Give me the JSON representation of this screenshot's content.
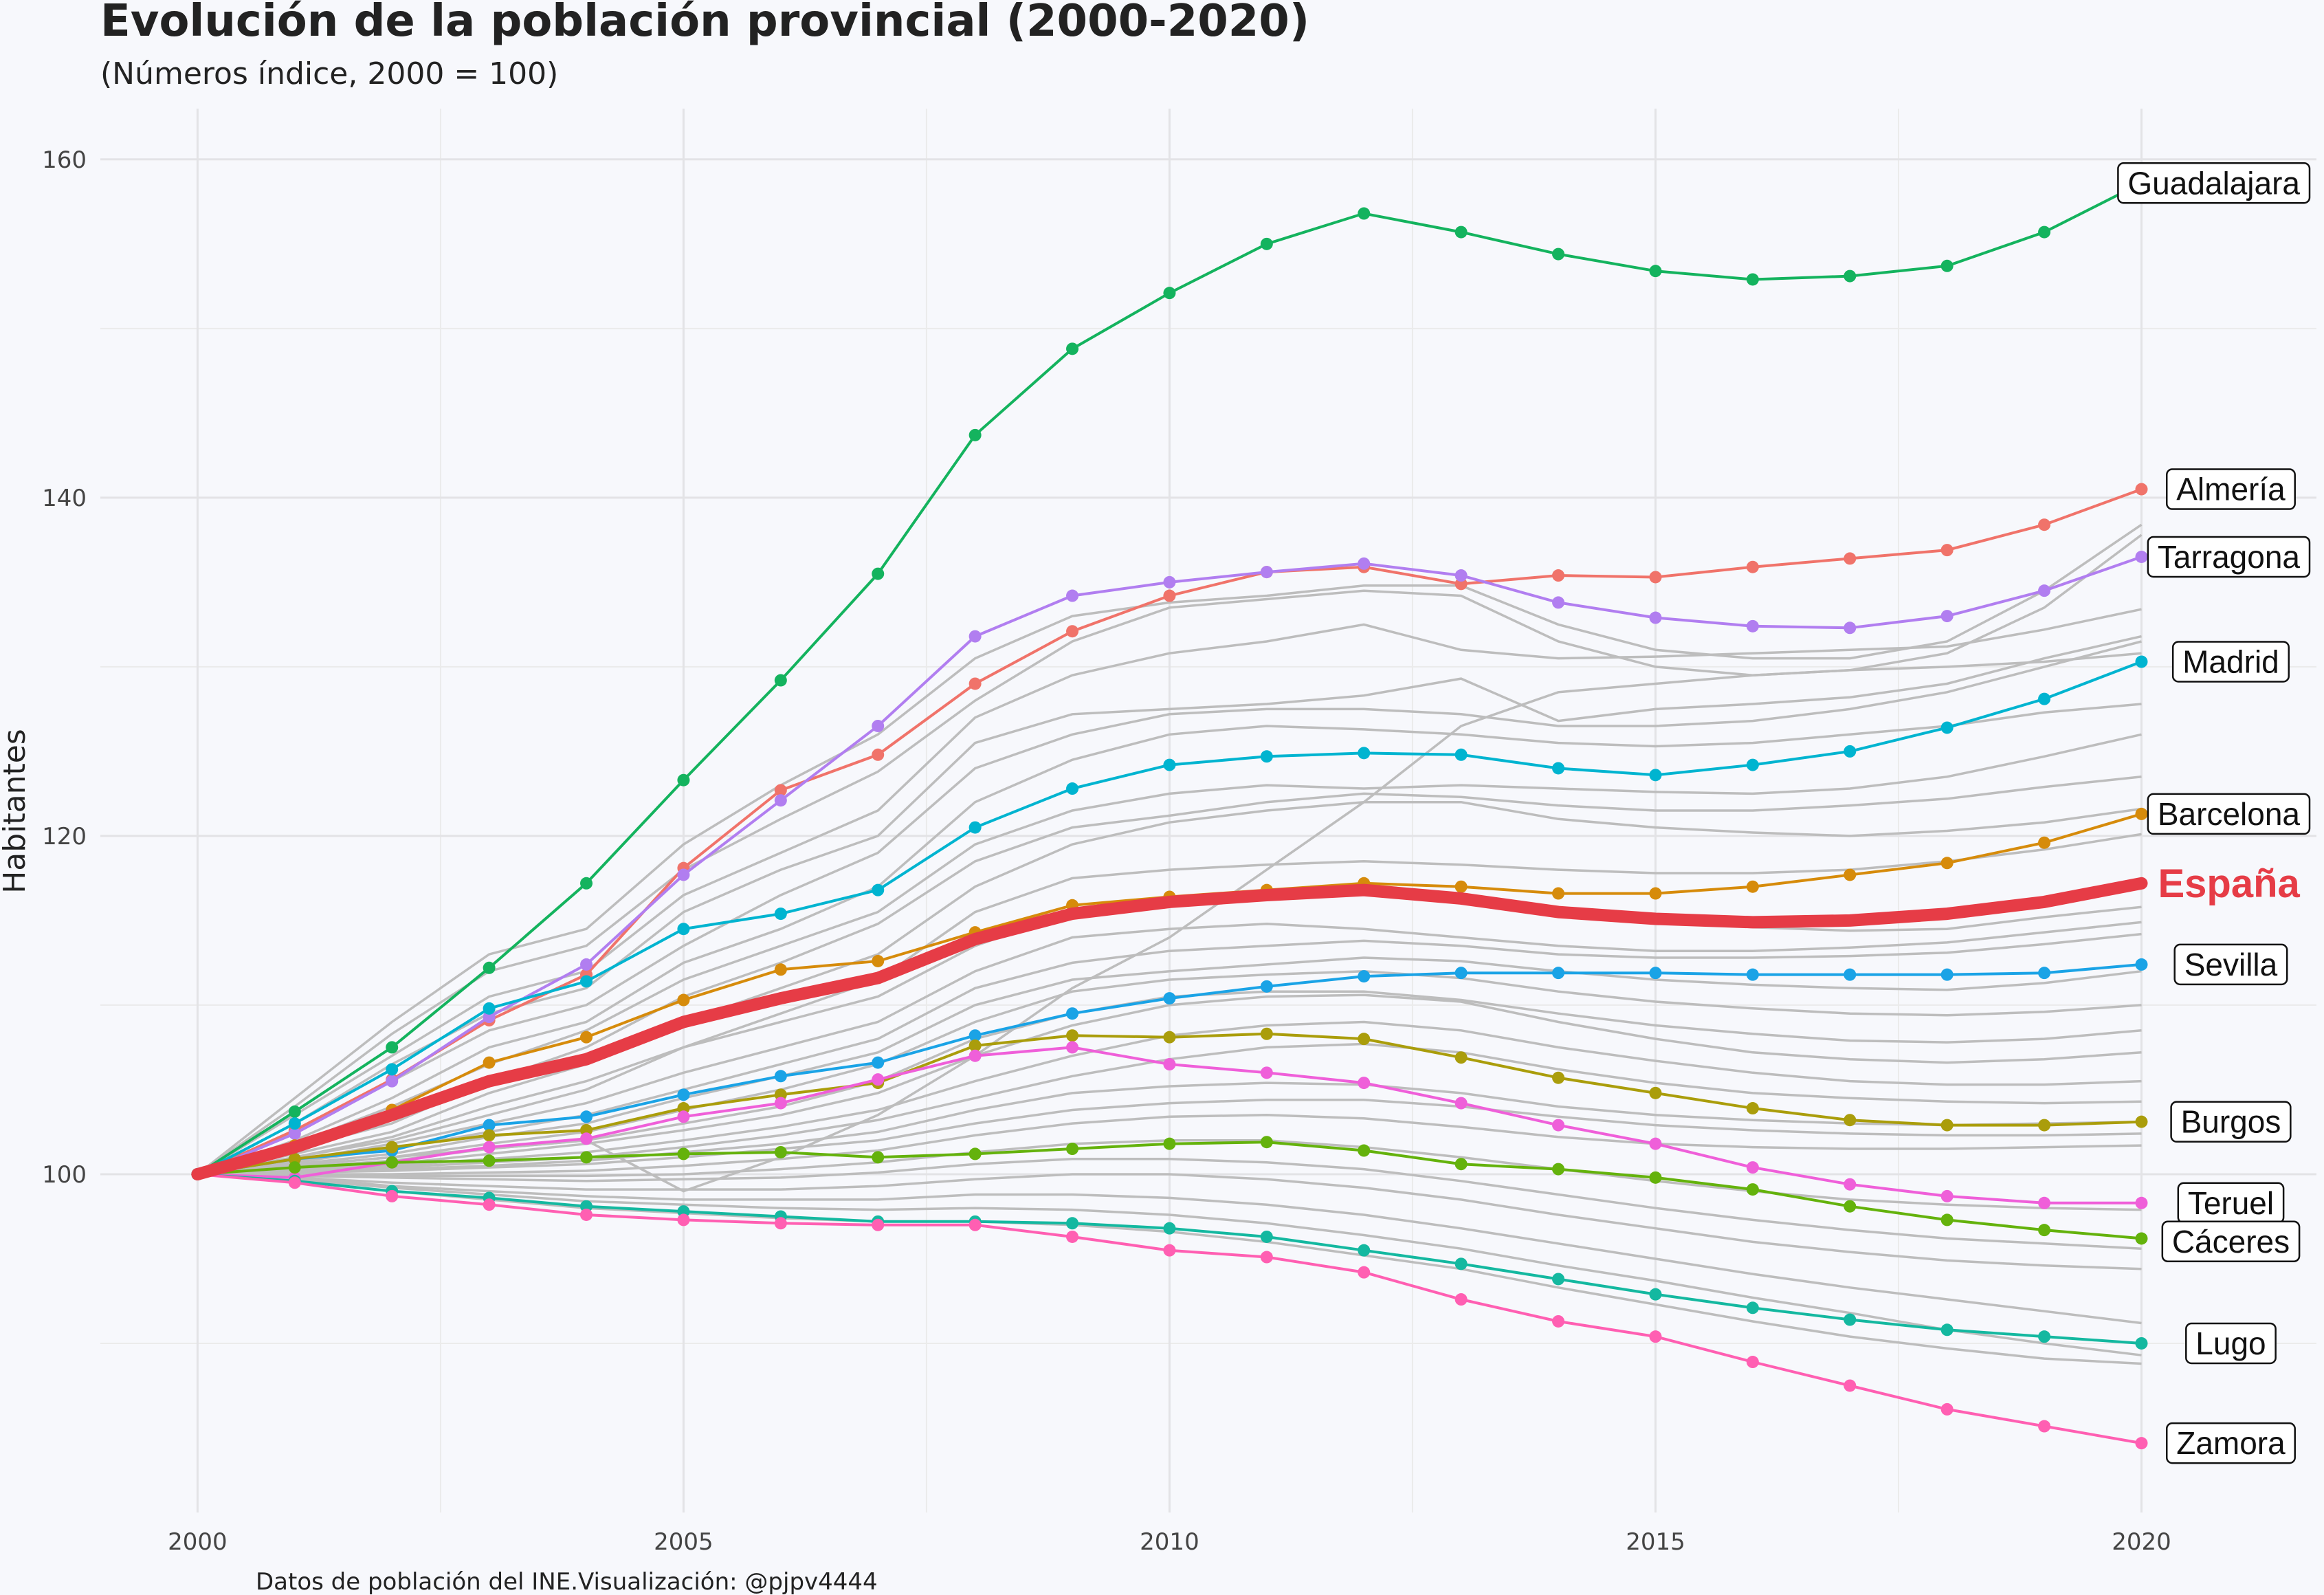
{
  "chart_data": {
    "type": "line",
    "title": "Evolución de la población provincial (2000-2020)",
    "subtitle": "(Números índice, 2000 = 100)",
    "xlabel": "",
    "ylabel": "Habitantes",
    "caption": "Datos de población del INE.Visualización: @pjpv4444",
    "xlim": [
      1999,
      2021.8
    ],
    "ylim": [
      80,
      163
    ],
    "x_ticks": [
      2000,
      2005,
      2010,
      2015,
      2020
    ],
    "y_ticks": [
      100,
      120,
      140,
      160
    ],
    "grid": true,
    "legend": "none",
    "x": [
      2000,
      2001,
      2002,
      2003,
      2004,
      2005,
      2006,
      2007,
      2008,
      2009,
      2010,
      2011,
      2012,
      2013,
      2014,
      2015,
      2016,
      2017,
      2018,
      2019,
      2020
    ],
    "highlight": {
      "name": "España",
      "color": "#e63c46",
      "values": [
        100,
        101.6,
        103.5,
        105.5,
        106.8,
        109.0,
        110.4,
        111.6,
        113.9,
        115.4,
        116.1,
        116.5,
        116.8,
        116.3,
        115.5,
        115.1,
        114.9,
        115.0,
        115.4,
        116.1,
        117.2
      ]
    },
    "series": [
      {
        "name": "Guadalajara",
        "color": "#14b35e",
        "values": [
          100,
          103.7,
          107.5,
          112.2,
          117.2,
          123.3,
          129.2,
          135.5,
          143.7,
          148.8,
          152.1,
          155.0,
          156.8,
          155.7,
          154.4,
          153.4,
          152.9,
          153.1,
          153.7,
          155.7,
          158.6
        ]
      },
      {
        "name": "Almería",
        "color": "#f0736a",
        "values": [
          100,
          102.6,
          105.6,
          109.1,
          111.8,
          118.1,
          122.7,
          124.8,
          129.0,
          132.1,
          134.2,
          135.6,
          135.9,
          134.9,
          135.4,
          135.3,
          135.9,
          136.4,
          136.9,
          138.4,
          140.5
        ]
      },
      {
        "name": "Tarragona",
        "color": "#b17ef0",
        "values": [
          100,
          102.4,
          105.5,
          109.3,
          112.4,
          117.7,
          122.1,
          126.5,
          131.8,
          134.2,
          135.0,
          135.6,
          136.1,
          135.4,
          133.8,
          132.9,
          132.4,
          132.3,
          133.0,
          134.5,
          136.5
        ]
      },
      {
        "name": "Madrid",
        "color": "#00b4d0",
        "values": [
          100,
          103.0,
          106.2,
          109.8,
          111.4,
          114.5,
          115.4,
          116.8,
          120.5,
          122.8,
          124.2,
          124.7,
          124.9,
          124.8,
          124.0,
          123.6,
          124.2,
          125.0,
          126.4,
          128.1,
          130.3
        ]
      },
      {
        "name": "Barcelona",
        "color": "#d68b0b",
        "values": [
          100,
          101.7,
          103.8,
          106.6,
          108.1,
          110.3,
          112.1,
          112.6,
          114.3,
          115.9,
          116.4,
          116.8,
          117.2,
          117.0,
          116.6,
          116.6,
          117.0,
          117.7,
          118.4,
          119.6,
          121.3
        ]
      },
      {
        "name": "Sevilla",
        "color": "#1aa3e6",
        "values": [
          100,
          100.9,
          101.4,
          102.9,
          103.4,
          104.7,
          105.8,
          106.6,
          108.2,
          109.5,
          110.4,
          111.1,
          111.7,
          111.9,
          111.9,
          111.9,
          111.8,
          111.8,
          111.8,
          111.9,
          112.4
        ]
      },
      {
        "name": "Burgos",
        "color": "#aa9d0b",
        "values": [
          100,
          100.9,
          101.6,
          102.3,
          102.6,
          103.9,
          104.7,
          105.4,
          107.6,
          108.2,
          108.1,
          108.3,
          108.0,
          106.9,
          105.7,
          104.8,
          103.9,
          103.2,
          102.9,
          102.9,
          103.1
        ]
      },
      {
        "name": "Teruel",
        "color": "#ef5fd9",
        "values": [
          100,
          99.8,
          100.7,
          101.6,
          102.1,
          103.4,
          104.2,
          105.6,
          107.0,
          107.5,
          106.5,
          106.0,
          105.4,
          104.2,
          102.9,
          101.8,
          100.4,
          99.4,
          98.7,
          98.3,
          98.3
        ]
      },
      {
        "name": "Cáceres",
        "color": "#64b20c",
        "values": [
          100,
          100.4,
          100.7,
          100.8,
          101.0,
          101.2,
          101.3,
          101.0,
          101.2,
          101.5,
          101.8,
          101.9,
          101.4,
          100.6,
          100.3,
          99.8,
          99.1,
          98.1,
          97.3,
          96.7,
          96.2
        ]
      },
      {
        "name": "Lugo",
        "color": "#14b8a0",
        "values": [
          100,
          99.6,
          99.0,
          98.6,
          98.1,
          97.8,
          97.5,
          97.2,
          97.2,
          97.1,
          96.8,
          96.3,
          95.5,
          94.7,
          93.8,
          92.9,
          92.1,
          91.4,
          90.8,
          90.4,
          90.0
        ]
      },
      {
        "name": "Zamora",
        "color": "#ff5fb2",
        "values": [
          100,
          99.5,
          98.7,
          98.2,
          97.6,
          97.3,
          97.1,
          97.0,
          97.0,
          96.3,
          95.5,
          95.1,
          94.2,
          92.6,
          91.3,
          90.4,
          88.9,
          87.5,
          86.1,
          85.1,
          84.1
        ]
      }
    ],
    "background_series": [
      {
        "color": "#bdbdbd",
        "values": [
          100,
          104.5,
          109.0,
          113.0,
          114.5,
          119.5,
          123.0,
          126.0,
          130.5,
          133.0,
          133.8,
          134.2,
          134.8,
          134.8,
          132.5,
          131.0,
          130.5,
          130.5,
          131.5,
          134.5,
          138.4
        ]
      },
      {
        "color": "#bdbdbd",
        "values": [
          100,
          104.0,
          108.3,
          112.0,
          113.5,
          118.0,
          121.0,
          123.8,
          128.0,
          131.5,
          133.5,
          134.0,
          134.5,
          134.2,
          131.5,
          130.0,
          129.5,
          129.8,
          130.8,
          133.5,
          137.8
        ]
      },
      {
        "color": "#bdbdbd",
        "values": [
          100,
          103.5,
          107.0,
          110.5,
          112.0,
          116.5,
          119.0,
          121.5,
          127.0,
          129.5,
          130.8,
          131.5,
          132.5,
          131.0,
          130.5,
          130.6,
          130.8,
          131.0,
          131.2,
          132.2,
          133.4
        ]
      },
      {
        "color": "#bdbdbd",
        "values": [
          100,
          103.0,
          106.5,
          109.5,
          111.0,
          115.5,
          118.0,
          120.0,
          125.5,
          127.2,
          127.5,
          127.8,
          128.3,
          129.3,
          126.8,
          127.5,
          127.8,
          128.2,
          129.0,
          130.5,
          131.8
        ]
      },
      {
        "color": "#bdbdbd",
        "values": [
          100,
          102.5,
          105.5,
          108.5,
          110.0,
          113.5,
          116.5,
          119.0,
          124.0,
          126.0,
          127.2,
          127.5,
          127.5,
          127.2,
          126.5,
          126.5,
          126.8,
          127.5,
          128.5,
          130.0,
          131.5
        ]
      },
      {
        "color": "#bdbdbd",
        "values": [
          100,
          102.0,
          104.5,
          107.5,
          109.0,
          112.5,
          114.5,
          117.0,
          122.0,
          124.5,
          126.0,
          126.5,
          126.3,
          126.0,
          125.5,
          125.3,
          125.5,
          126.0,
          126.5,
          127.3,
          127.8
        ]
      },
      {
        "color": "#bdbdbd",
        "values": [
          100,
          101.8,
          104.0,
          106.5,
          108.5,
          111.5,
          113.5,
          115.5,
          119.5,
          121.5,
          122.5,
          123.0,
          122.8,
          123.0,
          122.8,
          122.6,
          122.5,
          122.8,
          123.5,
          124.7,
          126.0
        ]
      },
      {
        "color": "#bdbdbd",
        "values": [
          100,
          101.5,
          103.0,
          105.5,
          107.5,
          110.5,
          112.5,
          114.8,
          118.5,
          120.5,
          121.2,
          122.0,
          122.5,
          122.3,
          121.8,
          121.5,
          121.5,
          121.8,
          122.2,
          122.9,
          123.5
        ]
      },
      {
        "color": "#bdbdbd",
        "values": [
          100,
          101.2,
          102.5,
          104.8,
          106.5,
          109.0,
          111.0,
          113.0,
          117.0,
          119.5,
          120.8,
          121.5,
          122.0,
          122.0,
          121.0,
          120.5,
          120.2,
          120.0,
          120.3,
          120.8,
          121.6
        ]
      },
      {
        "color": "#bdbdbd",
        "values": [
          100,
          101.0,
          102.2,
          104.0,
          105.5,
          107.5,
          109.5,
          111.5,
          115.5,
          117.5,
          118.0,
          118.3,
          118.5,
          118.3,
          118.0,
          117.8,
          117.8,
          118.0,
          118.5,
          119.2,
          120.1
        ]
      },
      {
        "color": "#bdbdbd",
        "values": [
          100,
          100.5,
          101.0,
          101.5,
          102.0,
          99.0,
          101.0,
          103.5,
          107.0,
          111.0,
          114.0,
          118.0,
          122.0,
          126.5,
          128.5,
          129.0,
          129.5,
          129.8,
          130.0,
          130.3,
          130.8
        ]
      },
      {
        "color": "#bdbdbd",
        "values": [
          100,
          101.0,
          102.0,
          103.5,
          105.0,
          107.5,
          109.0,
          110.5,
          113.5,
          115.5,
          116.0,
          116.5,
          116.8,
          116.5,
          115.5,
          115.0,
          114.6,
          114.4,
          114.5,
          115.2,
          115.8
        ]
      },
      {
        "color": "#bdbdbd",
        "values": [
          100,
          100.8,
          101.8,
          103.0,
          104.2,
          106.0,
          107.5,
          109.0,
          112.0,
          114.0,
          114.5,
          114.8,
          114.5,
          114.0,
          113.5,
          113.2,
          113.2,
          113.4,
          113.7,
          114.3,
          114.9
        ]
      },
      {
        "color": "#bdbdbd",
        "values": [
          100,
          100.7,
          101.5,
          102.5,
          103.5,
          105.0,
          106.5,
          108.0,
          111.0,
          112.5,
          113.2,
          113.5,
          113.8,
          113.5,
          113.0,
          112.8,
          112.8,
          112.9,
          113.1,
          113.6,
          114.2
        ]
      },
      {
        "color": "#bdbdbd",
        "values": [
          100,
          100.6,
          101.2,
          102.2,
          103.0,
          104.5,
          105.8,
          107.2,
          110.0,
          111.5,
          112.0,
          112.4,
          112.8,
          112.6,
          112.0,
          111.5,
          111.2,
          111.0,
          110.9,
          111.3,
          112.0
        ]
      },
      {
        "color": "#bdbdbd",
        "values": [
          100,
          100.5,
          101.0,
          101.8,
          102.5,
          103.8,
          105.0,
          106.5,
          109.0,
          110.8,
          111.5,
          111.8,
          112.0,
          111.6,
          110.8,
          110.2,
          109.8,
          109.5,
          109.4,
          109.6,
          110.0
        ]
      },
      {
        "color": "#bdbdbd",
        "values": [
          100,
          100.4,
          100.8,
          101.5,
          102.0,
          103.0,
          104.0,
          105.5,
          108.0,
          109.5,
          110.5,
          110.8,
          110.8,
          110.3,
          109.5,
          108.8,
          108.3,
          107.9,
          107.8,
          108.0,
          108.5
        ]
      },
      {
        "color": "#bdbdbd",
        "values": [
          100,
          100.3,
          100.6,
          101.2,
          101.8,
          102.6,
          103.5,
          104.8,
          107.0,
          108.8,
          110.0,
          110.5,
          110.6,
          110.2,
          109.0,
          108.0,
          107.2,
          106.8,
          106.6,
          106.8,
          107.2
        ]
      },
      {
        "color": "#bdbdbd",
        "values": [
          100,
          100.3,
          100.5,
          100.9,
          101.3,
          102.0,
          102.8,
          103.8,
          105.5,
          107.0,
          108.2,
          108.8,
          109.0,
          108.5,
          107.5,
          106.7,
          106.0,
          105.5,
          105.3,
          105.3,
          105.5
        ]
      },
      {
        "color": "#bdbdbd",
        "values": [
          100,
          100.2,
          100.4,
          100.7,
          101.0,
          101.6,
          102.3,
          103.2,
          104.5,
          105.8,
          106.8,
          107.5,
          107.7,
          107.2,
          106.2,
          105.4,
          104.8,
          104.5,
          104.3,
          104.2,
          104.3
        ]
      },
      {
        "color": "#bdbdbd",
        "values": [
          100,
          100.2,
          100.3,
          100.5,
          100.8,
          101.3,
          101.8,
          102.5,
          103.8,
          104.8,
          105.2,
          105.4,
          105.3,
          104.8,
          104.0,
          103.5,
          103.2,
          103.0,
          102.9,
          103.0,
          103.1
        ]
      },
      {
        "color": "#bdbdbd",
        "values": [
          100,
          100.1,
          100.2,
          100.4,
          100.6,
          101.0,
          101.5,
          102.0,
          103.0,
          103.8,
          104.2,
          104.4,
          104.4,
          104.0,
          103.4,
          102.9,
          102.6,
          102.4,
          102.3,
          102.3,
          102.4
        ]
      },
      {
        "color": "#bdbdbd",
        "values": [
          100,
          100.0,
          100.0,
          100.1,
          100.2,
          100.5,
          100.9,
          101.4,
          102.3,
          103.0,
          103.4,
          103.5,
          103.3,
          102.8,
          102.2,
          101.8,
          101.6,
          101.5,
          101.5,
          101.6,
          101.7
        ]
      },
      {
        "color": "#bdbdbd",
        "values": [
          100,
          100.0,
          99.9,
          99.9,
          99.9,
          100.0,
          100.3,
          100.7,
          101.3,
          101.8,
          102.0,
          102.0,
          101.6,
          101.0,
          100.3,
          99.6,
          99.0,
          98.5,
          98.2,
          98.0,
          97.9
        ]
      },
      {
        "color": "#bdbdbd",
        "values": [
          100,
          99.9,
          99.8,
          99.7,
          99.6,
          99.7,
          99.8,
          100.1,
          100.6,
          100.9,
          100.9,
          100.7,
          100.3,
          99.6,
          98.8,
          98.0,
          97.3,
          96.7,
          96.2,
          95.9,
          95.6
        ]
      },
      {
        "color": "#bdbdbd",
        "values": [
          100,
          99.8,
          99.5,
          99.3,
          99.1,
          99.1,
          99.1,
          99.3,
          99.7,
          100.0,
          100.0,
          99.7,
          99.2,
          98.5,
          97.6,
          96.8,
          96.0,
          95.4,
          94.9,
          94.6,
          94.4
        ]
      },
      {
        "color": "#bdbdbd",
        "values": [
          100,
          99.8,
          99.3,
          99.0,
          98.7,
          98.5,
          98.5,
          98.5,
          98.8,
          98.8,
          98.6,
          98.2,
          97.6,
          96.8,
          95.9,
          95.0,
          94.1,
          93.3,
          92.6,
          91.9,
          91.2
        ]
      },
      {
        "color": "#bdbdbd",
        "values": [
          100,
          99.7,
          99.2,
          98.8,
          98.4,
          98.2,
          98.0,
          97.9,
          98.0,
          97.9,
          97.6,
          97.1,
          96.4,
          95.6,
          94.6,
          93.7,
          92.7,
          91.8,
          90.8,
          90.0,
          89.3
        ]
      },
      {
        "color": "#bdbdbd",
        "values": [
          100,
          99.6,
          99.0,
          98.5,
          98.0,
          97.7,
          97.4,
          97.2,
          97.2,
          97.0,
          96.6,
          96.0,
          95.2,
          94.4,
          93.3,
          92.3,
          91.3,
          90.4,
          89.7,
          89.1,
          88.8
        ]
      }
    ]
  }
}
